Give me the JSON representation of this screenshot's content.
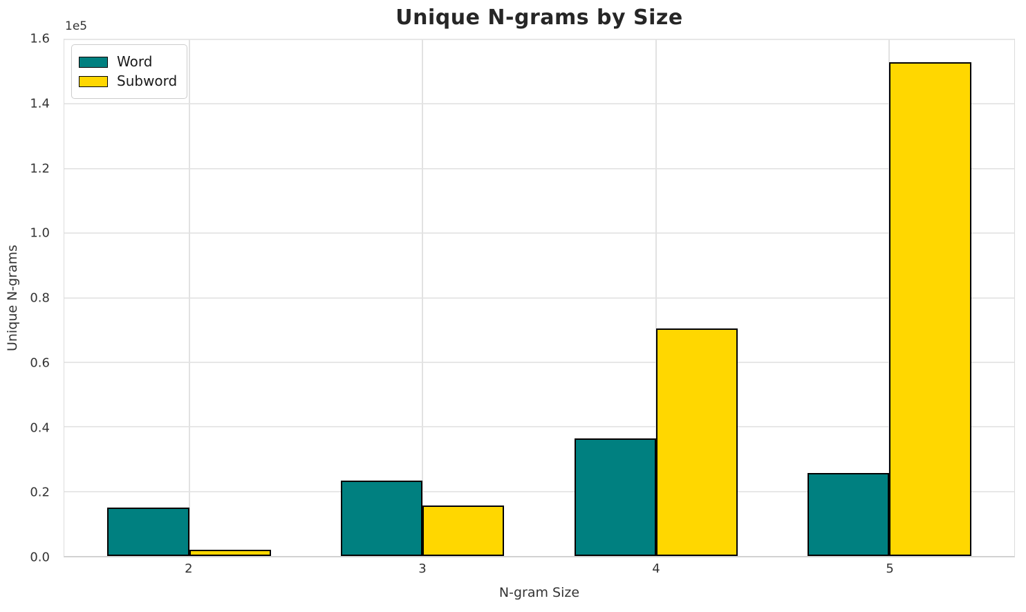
{
  "chart_data": {
    "type": "bar",
    "title": "Unique N-grams by Size",
    "xlabel": "N-gram Size",
    "ylabel": "Unique N-grams",
    "y_offset_label": "1e5",
    "categories": [
      "2",
      "3",
      "4",
      "5"
    ],
    "series": [
      {
        "name": "Word",
        "color": "#008080",
        "values": [
          15000,
          23400,
          36500,
          25700
        ]
      },
      {
        "name": "Subword",
        "color": "#FFD700",
        "values": [
          2000,
          15700,
          70500,
          152900
        ]
      }
    ],
    "bar_edge_color": "#000000",
    "bar_width": 0.35,
    "ylim": [
      0,
      160000
    ],
    "xlim": [
      1.465,
      5.535
    ],
    "ytick_labels": [
      "0.0",
      "0.2",
      "0.4",
      "0.6",
      "0.8",
      "1.0",
      "1.2",
      "1.4",
      "1.6"
    ],
    "grid": true,
    "legend_position": "upper left"
  }
}
